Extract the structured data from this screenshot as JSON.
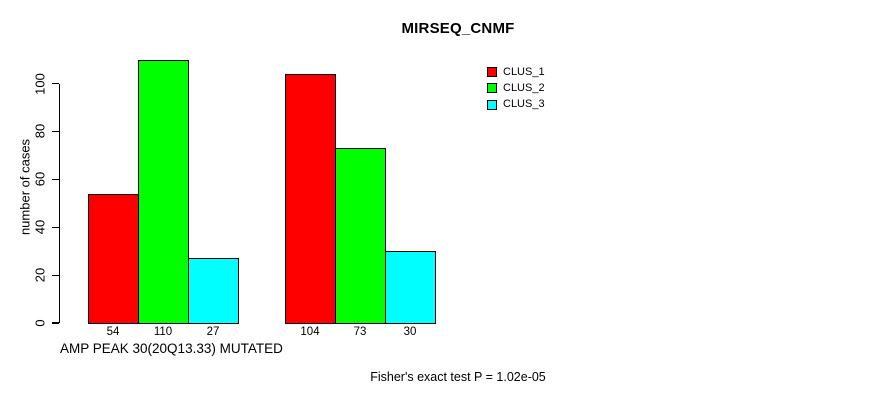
{
  "chart_data": {
    "type": "bar",
    "title": "MIRSEQ_CNMF",
    "ylabel": "number of cases",
    "xlabel": "AMP PEAK 30(20Q13.33) MUTATED",
    "footer": "Fisher's exact test P = 1.02e-05",
    "categories": [
      "",
      ""
    ],
    "series": [
      {
        "name": "CLUS_1",
        "color": "#FF0000",
        "values": [
          54,
          104
        ]
      },
      {
        "name": "CLUS_2",
        "color": "#00FF00",
        "values": [
          110,
          73
        ]
      },
      {
        "name": "CLUS_3",
        "color": "#00FFFF",
        "values": [
          27,
          30
        ]
      }
    ],
    "bar_value_labels": [
      [
        54,
        110,
        27
      ],
      [
        104,
        73,
        30
      ]
    ],
    "yticks": [
      0,
      20,
      40,
      60,
      80,
      100
    ],
    "ylim": [
      0,
      115
    ],
    "grid": false,
    "legend_position": "top-right",
    "axis_color": "#000000",
    "background_color": "#FFFFFF"
  }
}
